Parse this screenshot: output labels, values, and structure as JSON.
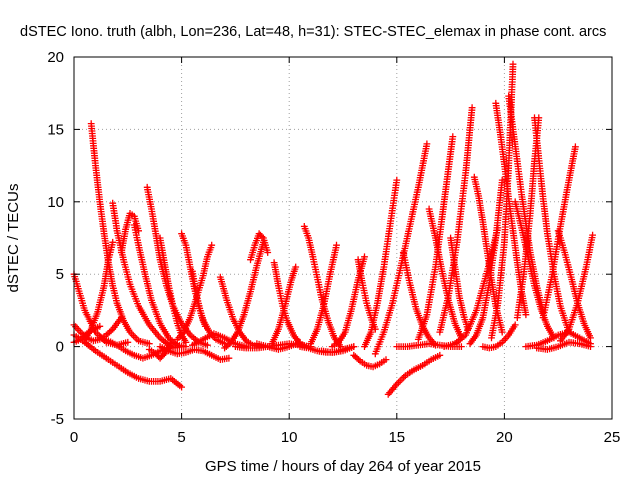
{
  "chart_data": {
    "type": "scatter",
    "title": "dSTEC Iono. truth (albh, Lon=236, Lat=48, h=31): STEC-STEC_elemax in phase cont. arcs",
    "xlabel": "GPS time / hours of day 264 of year 2015",
    "ylabel": "dSTEC  / TECUs",
    "xlim": [
      0,
      25
    ],
    "ylim": [
      -5,
      20
    ],
    "xticks": [
      0,
      5,
      10,
      15,
      20,
      25
    ],
    "yticks": [
      -5,
      0,
      5,
      10,
      15,
      20
    ],
    "xtick_labels": [
      "0",
      "5",
      "10",
      "15",
      "20",
      "25"
    ],
    "ytick_labels": [
      "-5",
      "0",
      "5",
      "10",
      "15",
      "20"
    ],
    "grid": true,
    "marker": "+",
    "color": "#ff0000",
    "series": [
      {
        "x": [
          0.0,
          0.5,
          1.0,
          1.5,
          2.0,
          2.5
        ],
        "y": [
          5.0,
          2.5,
          1.0,
          0.3,
          0.1,
          0.3
        ]
      },
      {
        "x": [
          0.0,
          0.3,
          0.6,
          0.9,
          1.2,
          1.5,
          1.8,
          2.2
        ],
        "y": [
          1.5,
          1.0,
          0.6,
          0.4,
          0.5,
          0.8,
          1.2,
          2.0
        ]
      },
      {
        "x": [
          0.0,
          0.5,
          1.0,
          1.5,
          2.0,
          2.5,
          3.0,
          3.5,
          4.0,
          4.5,
          5.0
        ],
        "y": [
          0.8,
          0.3,
          -0.3,
          -0.8,
          -1.3,
          -1.8,
          -2.2,
          -2.4,
          -2.4,
          -2.2,
          -2.8
        ]
      },
      {
        "x": [
          0.0,
          0.3,
          0.6,
          0.9,
          1.2
        ],
        "y": [
          0.3,
          0.5,
          0.9,
          1.2,
          1.4
        ]
      },
      {
        "x": [
          0.8,
          1.0,
          1.2,
          1.4,
          1.6,
          1.8,
          2.0,
          2.3,
          2.6,
          3.0,
          3.5
        ],
        "y": [
          15.4,
          12.5,
          10.0,
          7.8,
          5.8,
          4.2,
          3.0,
          1.8,
          1.0,
          0.4,
          0.2
        ]
      },
      {
        "x": [
          0.5,
          0.8,
          1.1,
          1.4,
          1.6,
          1.8
        ],
        "y": [
          0.5,
          1.2,
          2.4,
          4.2,
          6.0,
          7.2
        ]
      },
      {
        "x": [
          1.8,
          2.0,
          2.3,
          2.6,
          3.0,
          3.5,
          4.0,
          4.5
        ],
        "y": [
          9.9,
          8.0,
          6.0,
          4.3,
          2.8,
          1.5,
          0.6,
          0.0
        ]
      },
      {
        "x": [
          1.2,
          1.6,
          2.0,
          2.4,
          2.8,
          3.2,
          3.6,
          4.0,
          4.5,
          5.0
        ],
        "y": [
          0.6,
          0.4,
          0.1,
          -0.3,
          -0.6,
          -0.8,
          -0.6,
          -0.3,
          -0.1,
          0.0
        ]
      },
      {
        "x": [
          2.2,
          2.4,
          2.6,
          2.8,
          3.0
        ],
        "y": [
          6.5,
          8.1,
          9.2,
          9.0,
          8.0
        ]
      },
      {
        "x": [
          2.8,
          3.0,
          3.3,
          3.6,
          4.0,
          4.4,
          4.8,
          5.2
        ],
        "y": [
          8.4,
          7.0,
          5.0,
          3.2,
          1.6,
          0.6,
          0.1,
          0.0
        ]
      },
      {
        "x": [
          3.4,
          3.6,
          3.8,
          4.0,
          4.3,
          4.6,
          5.0,
          5.4,
          5.8,
          6.2
        ],
        "y": [
          11.0,
          9.5,
          7.8,
          6.0,
          4.2,
          2.8,
          1.6,
          0.8,
          0.3,
          0.1
        ]
      },
      {
        "x": [
          4.0,
          4.2,
          4.4,
          4.6,
          4.8,
          5.0,
          5.2
        ],
        "y": [
          7.5,
          5.8,
          4.2,
          2.8,
          1.6,
          0.8,
          0.3
        ]
      },
      {
        "x": [
          3.5,
          3.8,
          4.0,
          4.2,
          4.5
        ],
        "y": [
          -0.2,
          -0.5,
          -0.8,
          -0.5,
          0.2
        ]
      },
      {
        "x": [
          4.0,
          4.4,
          4.8,
          5.2,
          5.6,
          6.0,
          6.4,
          6.8,
          7.2
        ],
        "y": [
          0.0,
          -0.3,
          -0.5,
          -0.4,
          -0.2,
          -0.3,
          -0.6,
          -0.9,
          -0.8
        ]
      },
      {
        "x": [
          5.0,
          5.2,
          5.4,
          5.6,
          5.8,
          6.0,
          6.3,
          6.6,
          7.0
        ],
        "y": [
          7.8,
          7.0,
          5.5,
          4.0,
          2.8,
          1.8,
          1.0,
          0.5,
          0.2
        ]
      },
      {
        "x": [
          4.8,
          5.1,
          5.4,
          5.7,
          6.0,
          6.2,
          6.4
        ],
        "y": [
          0.5,
          1.0,
          2.0,
          3.4,
          4.9,
          6.2,
          7.0
        ]
      },
      {
        "x": [
          5.5,
          6.0,
          6.5,
          7.0,
          7.5,
          8.0
        ],
        "y": [
          0.1,
          0.5,
          0.9,
          0.6,
          0.2,
          0.0
        ]
      },
      {
        "x": [
          5.5,
          5.7,
          5.9,
          6.1
        ],
        "y": [
          5.2,
          3.5,
          2.3,
          1.4
        ]
      },
      {
        "x": [
          6.8,
          7.1,
          7.4,
          7.7,
          8.0,
          8.3,
          8.6
        ],
        "y": [
          4.8,
          3.2,
          1.9,
          1.0,
          0.4,
          0.1,
          0.0
        ]
      },
      {
        "x": [
          7.0,
          7.3,
          7.6,
          7.9,
          8.2,
          8.5,
          8.8
        ],
        "y": [
          -0.1,
          0.3,
          1.0,
          2.2,
          3.8,
          5.6,
          7.2
        ]
      },
      {
        "x": [
          8.2,
          8.4,
          8.6,
          8.8,
          9.0
        ],
        "y": [
          6.0,
          7.0,
          7.8,
          7.5,
          6.5
        ]
      },
      {
        "x": [
          7.5,
          8.0,
          8.5,
          9.0,
          9.5,
          10.0,
          10.5,
          11.0
        ],
        "y": [
          0.0,
          -0.1,
          -0.1,
          0.0,
          0.1,
          0.2,
          0.1,
          0.0
        ]
      },
      {
        "x": [
          8.5,
          9.0,
          9.5,
          10.0,
          10.5
        ],
        "y": [
          0.2,
          0.0,
          -0.2,
          0.0,
          0.3
        ]
      },
      {
        "x": [
          9.3,
          9.5,
          9.7,
          9.9,
          10.2,
          10.5,
          10.8
        ],
        "y": [
          5.8,
          4.2,
          2.8,
          1.8,
          0.8,
          0.2,
          0.0
        ]
      },
      {
        "x": [
          9.2,
          9.5,
          9.8,
          10.1,
          10.3
        ],
        "y": [
          0.2,
          1.2,
          2.8,
          4.6,
          5.5
        ]
      },
      {
        "x": [
          10.7,
          10.9,
          11.1,
          11.3,
          11.5,
          11.8,
          12.1,
          12.4
        ],
        "y": [
          8.3,
          7.5,
          6.2,
          4.8,
          3.4,
          1.8,
          0.6,
          0.0
        ]
      },
      {
        "x": [
          10.5,
          10.9,
          11.3,
          11.7,
          12.1,
          12.5,
          13.0
        ],
        "y": [
          0.0,
          -0.1,
          -0.3,
          -0.4,
          -0.4,
          -0.2,
          0.0
        ]
      },
      {
        "x": [
          11.0,
          11.3,
          11.6,
          11.9,
          12.2
        ],
        "y": [
          0.2,
          1.2,
          2.8,
          5.0,
          7.0
        ]
      },
      {
        "x": [
          11.5,
          12.0,
          12.5,
          13.0
        ],
        "y": [
          -0.3,
          -0.4,
          -0.3,
          0.0
        ]
      },
      {
        "x": [
          12.0,
          12.3,
          12.6,
          12.9,
          13.2,
          13.5
        ],
        "y": [
          0.0,
          0.3,
          1.0,
          2.6,
          4.6,
          6.2
        ]
      },
      {
        "x": [
          13.2,
          13.4,
          13.6,
          13.8,
          14.0
        ],
        "y": [
          6.0,
          4.4,
          3.0,
          2.0,
          1.2
        ]
      },
      {
        "x": [
          13.0,
          13.3,
          13.6,
          13.9,
          14.2,
          14.5
        ],
        "y": [
          -0.6,
          -1.0,
          -1.3,
          -1.4,
          -1.2,
          -0.9
        ]
      },
      {
        "x": [
          13.5,
          13.8,
          14.1,
          14.4,
          14.7,
          15.0
        ],
        "y": [
          0.0,
          1.0,
          3.0,
          5.5,
          8.5,
          11.5
        ]
      },
      {
        "x": [
          14.0,
          14.4,
          14.8,
          15.2,
          15.6,
          16.0,
          16.4
        ],
        "y": [
          -0.5,
          1.0,
          3.0,
          5.6,
          8.3,
          11.0,
          14.0
        ]
      },
      {
        "x": [
          14.6,
          15.0,
          15.4,
          15.8,
          16.2,
          16.6,
          17.0
        ],
        "y": [
          -3.3,
          -2.6,
          -2.0,
          -1.6,
          -1.3,
          -0.9,
          -0.6
        ]
      },
      {
        "x": [
          15.3,
          15.6,
          15.9,
          16.2,
          16.5,
          16.8
        ],
        "y": [
          6.5,
          4.4,
          2.6,
          1.4,
          0.6,
          0.1
        ]
      },
      {
        "x": [
          15.0,
          15.5,
          16.0,
          16.5,
          17.0,
          17.5,
          18.0
        ],
        "y": [
          0.0,
          0.0,
          0.1,
          0.2,
          0.1,
          0.0,
          0.0
        ]
      },
      {
        "x": [
          16.0,
          16.4,
          16.8,
          17.2,
          17.6
        ],
        "y": [
          0.5,
          2.2,
          5.5,
          10.0,
          14.5
        ]
      },
      {
        "x": [
          16.5,
          16.8,
          17.1,
          17.4,
          17.7,
          18.0
        ],
        "y": [
          9.5,
          7.5,
          5.2,
          3.2,
          1.6,
          0.6
        ]
      },
      {
        "x": [
          17.0,
          17.4,
          17.8,
          18.2,
          18.5
        ],
        "y": [
          1.0,
          3.5,
          7.2,
          12.0,
          16.5
        ]
      },
      {
        "x": [
          17.5,
          17.7,
          17.9,
          18.1,
          18.3
        ],
        "y": [
          7.5,
          5.5,
          3.5,
          2.2,
          1.2
        ]
      },
      {
        "x": [
          17.2,
          17.7,
          18.2,
          18.7,
          19.2,
          19.7
        ],
        "y": [
          0.0,
          0.2,
          0.8,
          2.5,
          5.2,
          8.2
        ]
      },
      {
        "x": [
          18.6,
          18.8,
          19.0,
          19.2,
          19.4,
          19.6,
          19.9
        ],
        "y": [
          11.7,
          10.4,
          8.6,
          6.6,
          4.6,
          2.8,
          1.0
        ]
      },
      {
        "x": [
          18.4,
          18.7,
          19.0,
          19.3,
          19.6,
          19.9
        ],
        "y": [
          0.2,
          0.8,
          2.0,
          4.4,
          7.5,
          11.5
        ]
      },
      {
        "x": [
          19.0,
          19.3,
          19.6,
          19.9,
          20.2,
          20.5
        ],
        "y": [
          0.0,
          -0.1,
          0.0,
          0.3,
          0.8,
          1.5
        ]
      },
      {
        "x": [
          19.6,
          19.8,
          20.0,
          20.2,
          20.4,
          20.6,
          20.8,
          21.0
        ],
        "y": [
          16.8,
          14.8,
          12.6,
          10.2,
          8.0,
          5.8,
          3.8,
          2.2
        ]
      },
      {
        "x": [
          19.4,
          19.7,
          20.0,
          20.2,
          20.4
        ],
        "y": [
          0.6,
          3.0,
          7.2,
          12.5,
          19.5
        ]
      },
      {
        "x": [
          20.2,
          20.4,
          20.6,
          20.8,
          21.0,
          21.2,
          21.5,
          21.8
        ],
        "y": [
          17.3,
          15.0,
          12.8,
          10.5,
          8.5,
          6.5,
          4.2,
          2.4
        ]
      },
      {
        "x": [
          20.6,
          20.9,
          21.2,
          21.4,
          21.6
        ],
        "y": [
          2.0,
          5.0,
          9.2,
          12.8,
          15.8
        ]
      },
      {
        "x": [
          21.4,
          21.6,
          21.8,
          22.0,
          22.3,
          22.6,
          23.0
        ],
        "y": [
          15.8,
          13.0,
          10.2,
          7.8,
          5.0,
          2.8,
          1.0
        ]
      },
      {
        "x": [
          20.5,
          20.8,
          21.1,
          21.4,
          21.7,
          22.0,
          22.3
        ],
        "y": [
          10.0,
          8.2,
          6.2,
          4.2,
          2.6,
          1.4,
          0.6
        ]
      },
      {
        "x": [
          21.0,
          21.5,
          22.0,
          22.5,
          23.0,
          23.5,
          24.0
        ],
        "y": [
          0.0,
          0.1,
          0.4,
          0.8,
          1.0,
          0.6,
          0.2
        ]
      },
      {
        "x": [
          21.8,
          22.2,
          22.6,
          23.0,
          23.3
        ],
        "y": [
          2.0,
          4.8,
          8.3,
          11.5,
          13.8
        ]
      },
      {
        "x": [
          22.5,
          22.8,
          23.1,
          23.4,
          23.7,
          24.0
        ],
        "y": [
          8.0,
          6.5,
          4.8,
          3.0,
          1.6,
          0.6
        ]
      },
      {
        "x": [
          22.6,
          23.0,
          23.4,
          23.8,
          24.1
        ],
        "y": [
          0.4,
          1.2,
          3.0,
          5.5,
          7.7
        ]
      },
      {
        "x": [
          21.5,
          22.0,
          22.5,
          23.0,
          23.5,
          24.0
        ],
        "y": [
          -0.1,
          -0.2,
          0.0,
          0.3,
          0.2,
          0.0
        ]
      }
    ]
  }
}
